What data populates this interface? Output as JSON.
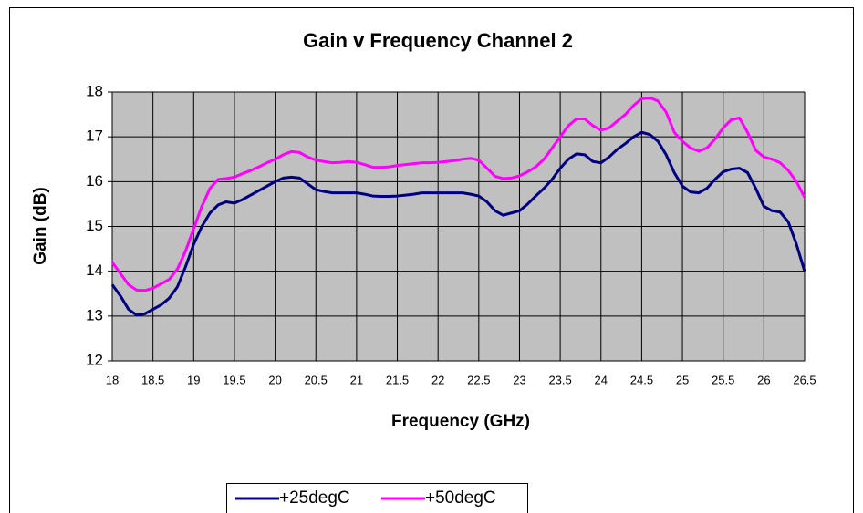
{
  "chart_data": {
    "type": "line",
    "title": "Gain v Frequency Channel 2",
    "xlabel": "Frequency (GHz)",
    "ylabel": "Gain (dB)",
    "x": [
      18,
      18.1,
      18.2,
      18.3,
      18.4,
      18.5,
      18.6,
      18.7,
      18.8,
      18.9,
      19,
      19.1,
      19.2,
      19.3,
      19.4,
      19.5,
      19.6,
      19.7,
      19.8,
      19.9,
      20,
      20.1,
      20.2,
      20.3,
      20.4,
      20.5,
      20.6,
      20.7,
      20.8,
      20.9,
      21,
      21.1,
      21.2,
      21.3,
      21.4,
      21.5,
      21.6,
      21.7,
      21.8,
      21.9,
      22,
      22.1,
      22.2,
      22.3,
      22.4,
      22.5,
      22.6,
      22.7,
      22.8,
      22.9,
      23,
      23.1,
      23.2,
      23.3,
      23.4,
      23.5,
      23.6,
      23.7,
      23.8,
      23.9,
      24,
      24.1,
      24.2,
      24.3,
      24.4,
      24.5,
      24.6,
      24.7,
      24.8,
      24.9,
      25,
      25.1,
      25.2,
      25.3,
      25.4,
      25.5,
      25.6,
      25.7,
      25.8,
      25.9,
      26,
      26.1,
      26.2,
      26.3,
      26.4,
      26.5
    ],
    "series": [
      {
        "name": "+25degC",
        "color": "#000080",
        "values": [
          13.7,
          13.45,
          13.15,
          13.02,
          13.05,
          13.15,
          13.25,
          13.4,
          13.65,
          14.1,
          14.6,
          15.0,
          15.3,
          15.48,
          15.55,
          15.52,
          15.6,
          15.7,
          15.8,
          15.9,
          16.0,
          16.08,
          16.1,
          16.08,
          15.95,
          15.82,
          15.78,
          15.75,
          15.75,
          15.75,
          15.75,
          15.72,
          15.68,
          15.67,
          15.67,
          15.68,
          15.7,
          15.72,
          15.75,
          15.75,
          15.75,
          15.75,
          15.75,
          15.75,
          15.72,
          15.68,
          15.55,
          15.35,
          15.25,
          15.3,
          15.35,
          15.5,
          15.68,
          15.85,
          16.05,
          16.3,
          16.5,
          16.62,
          16.6,
          16.45,
          16.42,
          16.55,
          16.72,
          16.85,
          17.0,
          17.1,
          17.05,
          16.9,
          16.6,
          16.2,
          15.9,
          15.77,
          15.75,
          15.85,
          16.05,
          16.22,
          16.28,
          16.3,
          16.2,
          15.85,
          15.45,
          15.35,
          15.32,
          15.1,
          14.6,
          14.0
        ]
      },
      {
        "name": "+50degC",
        "color": "#ff00ff",
        "values": [
          14.2,
          13.95,
          13.7,
          13.58,
          13.57,
          13.62,
          13.72,
          13.82,
          14.05,
          14.45,
          14.95,
          15.45,
          15.85,
          16.05,
          16.07,
          16.1,
          16.18,
          16.25,
          16.33,
          16.42,
          16.5,
          16.6,
          16.67,
          16.65,
          16.55,
          16.48,
          16.45,
          16.42,
          16.43,
          16.45,
          16.43,
          16.38,
          16.32,
          16.32,
          16.33,
          16.36,
          16.38,
          16.4,
          16.42,
          16.42,
          16.43,
          16.45,
          16.47,
          16.5,
          16.52,
          16.48,
          16.3,
          16.12,
          16.07,
          16.08,
          16.13,
          16.22,
          16.33,
          16.5,
          16.75,
          17.0,
          17.25,
          17.4,
          17.4,
          17.25,
          17.15,
          17.2,
          17.35,
          17.5,
          17.7,
          17.85,
          17.87,
          17.8,
          17.55,
          17.1,
          16.9,
          16.75,
          16.68,
          16.75,
          16.95,
          17.2,
          17.38,
          17.42,
          17.1,
          16.7,
          16.55,
          16.5,
          16.42,
          16.25,
          16.0,
          15.65
        ]
      }
    ],
    "xlim": [
      18,
      26.5
    ],
    "xticks": [
      18,
      18.5,
      19,
      19.5,
      20,
      20.5,
      21,
      21.5,
      22,
      22.5,
      23,
      23.5,
      24,
      24.5,
      25,
      25.5,
      26,
      26.5
    ],
    "ylim": [
      12,
      18
    ],
    "yticks": [
      12,
      13,
      14,
      15,
      16,
      17,
      18
    ],
    "grid": true,
    "plot_background": "#c0c0c0"
  }
}
